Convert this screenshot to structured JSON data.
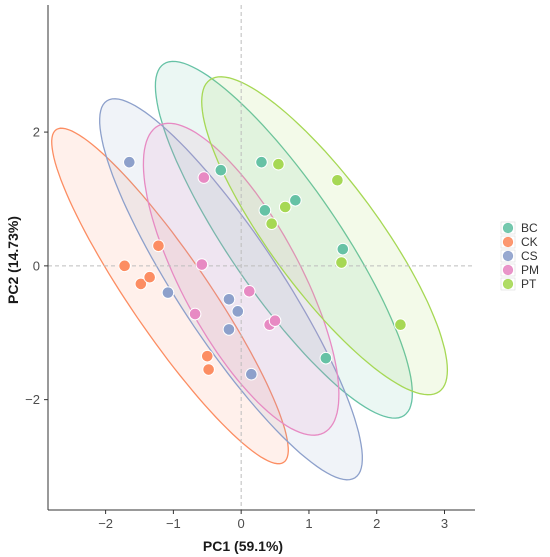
{
  "chart_data": {
    "type": "scatter",
    "title": "",
    "xlabel": "PC1 (59.1%)",
    "ylabel": "PC2 (14.73%)",
    "xlim": [
      -2.85,
      3.45
    ],
    "ylim": [
      -3.65,
      3.9
    ],
    "x_ticks": [
      -2,
      -1,
      0,
      1,
      2,
      3
    ],
    "y_ticks": [
      -2,
      0,
      2
    ],
    "x_tick_labels": [
      "−2",
      "−1",
      "0",
      "1",
      "2",
      "3"
    ],
    "y_tick_labels": [
      "−2",
      "0",
      "2"
    ],
    "reference_lines": {
      "x": 0,
      "y": 0
    },
    "grid": false,
    "legend_position": "right",
    "series": [
      {
        "name": "BC",
        "color": "#66C2A5",
        "points": [
          [
            -0.3,
            1.43
          ],
          [
            0.3,
            1.55
          ],
          [
            0.35,
            0.83
          ],
          [
            0.8,
            0.98
          ],
          [
            1.5,
            0.25
          ],
          [
            1.25,
            -1.38
          ]
        ],
        "ellipse": {
          "center": [
            0.63,
            0.39
          ],
          "major_half_length": 3.17,
          "minor_half_length": 0.81,
          "angle_deg": -56
        }
      },
      {
        "name": "CK",
        "color": "#FC8D62",
        "points": [
          [
            -1.72,
            0.0
          ],
          [
            -1.48,
            -0.27
          ],
          [
            -1.35,
            -0.17
          ],
          [
            -1.22,
            0.3
          ],
          [
            -0.5,
            -1.35
          ],
          [
            -0.48,
            -1.55
          ]
        ],
        "ellipse": {
          "center": [
            -1.05,
            -0.45
          ],
          "major_half_length": 3.0,
          "minor_half_length": 0.58,
          "angle_deg": -56
        }
      },
      {
        "name": "CS",
        "color": "#8DA0CB",
        "points": [
          [
            -1.65,
            1.55
          ],
          [
            -1.08,
            -0.4
          ],
          [
            -0.18,
            -0.5
          ],
          [
            -0.05,
            -0.68
          ],
          [
            -0.18,
            -0.95
          ],
          [
            0.15,
            -1.62
          ]
        ],
        "ellipse": {
          "center": [
            -0.15,
            -0.35
          ],
          "major_half_length": 3.36,
          "minor_half_length": 0.76,
          "angle_deg": -57
        }
      },
      {
        "name": "PM",
        "color": "#E78AC3",
        "points": [
          [
            -0.55,
            1.32
          ],
          [
            -0.58,
            0.02
          ],
          [
            -0.68,
            -0.72
          ],
          [
            0.12,
            -0.38
          ],
          [
            0.42,
            -0.88
          ],
          [
            0.5,
            -0.82
          ]
        ],
        "ellipse": {
          "center": [
            0.0,
            -0.2
          ],
          "major_half_length": 2.6,
          "minor_half_length": 0.87,
          "angle_deg": -62
        }
      },
      {
        "name": "PT",
        "color": "#A6D854",
        "points": [
          [
            0.55,
            1.52
          ],
          [
            0.45,
            0.63
          ],
          [
            0.65,
            0.88
          ],
          [
            1.42,
            1.28
          ],
          [
            1.48,
            0.05
          ],
          [
            2.35,
            -0.88
          ]
        ],
        "ellipse": {
          "center": [
            1.23,
            0.45
          ],
          "major_half_length": 2.88,
          "minor_half_length": 0.8,
          "angle_deg": -54
        }
      }
    ]
  }
}
